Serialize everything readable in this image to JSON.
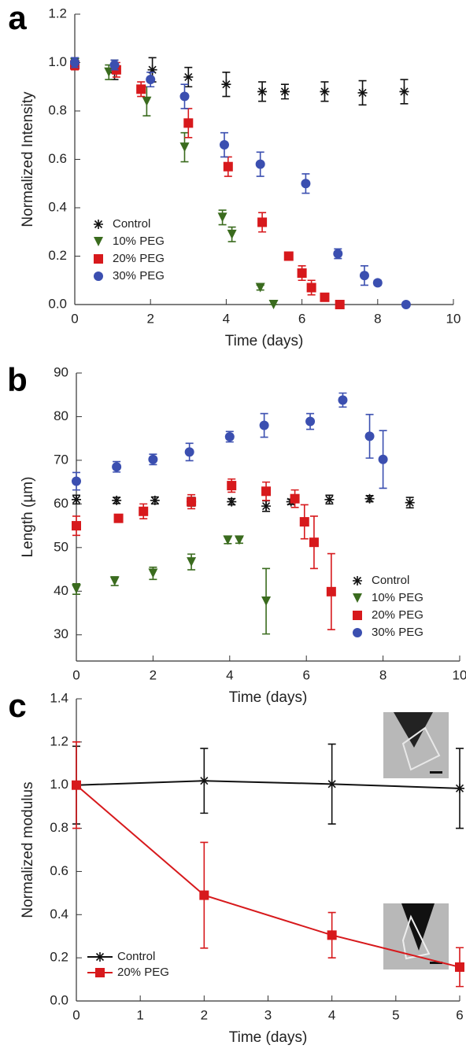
{
  "chart_data": [
    {
      "type": "scatter",
      "panel_label": "a",
      "x_label": "Time (days)",
      "y_label": "Normalized Intensity",
      "xlim": [
        0,
        10
      ],
      "xticks": [
        0,
        2,
        4,
        6,
        8,
        10
      ],
      "ylim": [
        0,
        1.2
      ],
      "yticks": [
        {
          "value": 0,
          "label": "0.0"
        },
        0.2,
        0.4,
        0.6,
        0.8,
        {
          "value": 1,
          "label": "1.0"
        },
        1.2
      ],
      "legend": "lower left",
      "series": [
        {
          "name": "Control",
          "color": "#111111",
          "marker": "asterisk",
          "x": [
            0,
            1.05,
            2.05,
            3.0,
            4.0,
            4.95,
            5.55,
            6.6,
            7.6,
            8.7
          ],
          "values": [
            1.0,
            0.97,
            0.97,
            0.94,
            0.91,
            0.88,
            0.88,
            0.88,
            0.875,
            0.88
          ],
          "errors": [
            0.02,
            0.04,
            0.05,
            0.04,
            0.05,
            0.04,
            0.03,
            0.04,
            0.05,
            0.05
          ]
        },
        {
          "name": "10% PEG",
          "color": "#3a6b1e",
          "marker": "triangle-down",
          "x": [
            0,
            0.9,
            1.9,
            2.9,
            3.9,
            4.15,
            4.9,
            5.25
          ],
          "values": [
            1.0,
            0.96,
            0.84,
            0.65,
            0.36,
            0.29,
            0.07,
            0.0
          ],
          "errors": [
            0.02,
            0.03,
            0.06,
            0.06,
            0.03,
            0.03,
            0.01,
            0.0
          ]
        },
        {
          "name": "20% PEG",
          "color": "#d7191c",
          "marker": "square",
          "x": [
            0,
            1.1,
            1.75,
            3.0,
            4.05,
            4.95,
            5.65,
            6.0,
            6.25,
            6.6,
            7.0
          ],
          "values": [
            0.99,
            0.97,
            0.89,
            0.75,
            0.57,
            0.34,
            0.2,
            0.13,
            0.07,
            0.03,
            0.0
          ],
          "errors": [
            0.02,
            0.03,
            0.03,
            0.06,
            0.04,
            0.04,
            0.01,
            0.03,
            0.03,
            0.01,
            0.0
          ]
        },
        {
          "name": "30% PEG",
          "color": "#3b4fb0",
          "marker": "circle",
          "x": [
            0,
            1.05,
            2.0,
            2.9,
            3.95,
            4.9,
            6.1,
            6.95,
            7.65,
            8.0,
            8.75
          ],
          "values": [
            1.0,
            0.99,
            0.93,
            0.86,
            0.66,
            0.58,
            0.5,
            0.21,
            0.12,
            0.09,
            0.0
          ],
          "errors": [
            0.02,
            0.02,
            0.03,
            0.05,
            0.05,
            0.05,
            0.04,
            0.02,
            0.04,
            0.01,
            0.0
          ]
        }
      ]
    },
    {
      "type": "scatter",
      "panel_label": "b",
      "x_label": "Time (days)",
      "y_label": "Length (µm)",
      "xlim": [
        0,
        10
      ],
      "xticks": [
        0,
        2,
        4,
        6,
        8,
        10
      ],
      "ylim": [
        24,
        90
      ],
      "yticks": [
        30,
        40,
        50,
        60,
        70,
        80,
        90
      ],
      "legend": "lower right",
      "series": [
        {
          "name": "Control",
          "color": "#111111",
          "marker": "asterisk",
          "x": [
            0,
            1.05,
            2.05,
            3.0,
            4.05,
            4.95,
            5.6,
            6.6,
            7.65,
            8.7
          ],
          "values": [
            61,
            60.8,
            60.8,
            60.5,
            60.5,
            59.5,
            60.5,
            61,
            61.2,
            60.3
          ],
          "errors": [
            1,
            0.7,
            0.8,
            1,
            0.7,
            1.2,
            0.6,
            1,
            0.7,
            1.2
          ]
        },
        {
          "name": "10% PEG",
          "color": "#3a6b1e",
          "marker": "triangle-down",
          "x": [
            0,
            1.0,
            2.0,
            3.0,
            3.95,
            4.25,
            4.95
          ],
          "values": [
            40.5,
            42.3,
            44.1,
            46.7,
            51.7,
            51.7,
            37.7
          ],
          "errors": [
            1.2,
            1,
            1.4,
            1.8,
            0.8,
            0.7,
            7.5
          ]
        },
        {
          "name": "20% PEG",
          "color": "#d7191c",
          "marker": "square",
          "x": [
            0,
            1.1,
            1.75,
            3.0,
            4.05,
            4.95,
            5.7,
            5.95,
            6.2,
            6.65
          ],
          "values": [
            55,
            56.7,
            58.3,
            60.5,
            64.2,
            62.9,
            61.2,
            55.9,
            51.2,
            39.9
          ],
          "errors": [
            2.2,
            0.8,
            1.7,
            1.6,
            1.5,
            2.1,
            2,
            3.9,
            6,
            8.7
          ]
        },
        {
          "name": "30% PEG",
          "color": "#3b4fb0",
          "marker": "circle",
          "x": [
            0,
            1.05,
            2.0,
            2.95,
            4.0,
            4.9,
            6.1,
            6.95,
            7.65,
            8.0
          ],
          "values": [
            65.2,
            68.5,
            70.2,
            71.9,
            75.4,
            78,
            78.9,
            83.8,
            75.5,
            70.2
          ],
          "errors": [
            2,
            1.2,
            1.2,
            2,
            1.2,
            2.7,
            1.8,
            1.6,
            5,
            6.6
          ]
        }
      ]
    },
    {
      "type": "line",
      "panel_label": "c",
      "x_label": "Time (days)",
      "y_label": "Normalized modulus",
      "xlim": [
        0,
        6
      ],
      "xticks": [
        0,
        1,
        2,
        3,
        4,
        5,
        6
      ],
      "ylim": [
        0,
        1.4
      ],
      "yticks": [
        {
          "value": 0,
          "label": "0.0"
        },
        0.2,
        0.4,
        0.6,
        0.8,
        {
          "value": 1,
          "label": "1.0"
        },
        1.2,
        1.4
      ],
      "legend": "lower left",
      "series": [
        {
          "name": "Control",
          "color": "#111111",
          "marker": "asterisk",
          "x": [
            0,
            2,
            4,
            6
          ],
          "values": [
            1.0,
            1.02,
            1.005,
            0.985
          ],
          "errors": [
            0.18,
            0.15,
            0.185,
            0.185
          ]
        },
        {
          "name": "20% PEG",
          "color": "#d7191c",
          "marker": "square",
          "x": [
            0,
            2,
            4,
            6
          ],
          "values": [
            1.0,
            0.49,
            0.305,
            0.157
          ],
          "errors": [
            0.2,
            0.245,
            0.105,
            0.09
          ]
        }
      ]
    }
  ]
}
